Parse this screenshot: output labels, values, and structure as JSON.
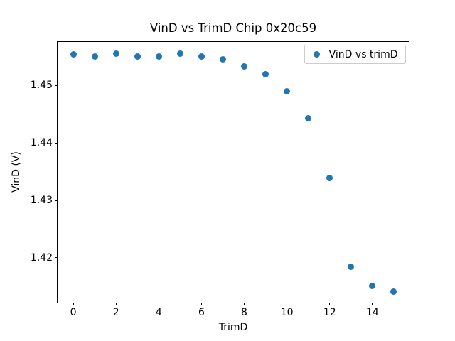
{
  "figure": {
    "background_color": "#ffffff",
    "axes_edge_color": "#000000",
    "text_color": "#000000",
    "legend_edge_color": "#cccccc"
  },
  "chart_data": {
    "type": "scatter",
    "title": "VinD vs TrimD Chip 0x20c59",
    "xlabel": "TrimD",
    "ylabel": "VinD (V)",
    "legend": [
      "VinD vs trimD"
    ],
    "legend_position": "upper right",
    "marker_color": "#1f77b4",
    "grid": false,
    "x": [
      0,
      1,
      2,
      3,
      4,
      5,
      6,
      7,
      8,
      9,
      10,
      11,
      12,
      13,
      14,
      15
    ],
    "y": [
      1.4554,
      1.455,
      1.4556,
      1.455,
      1.4551,
      1.4555,
      1.455,
      1.4545,
      1.4533,
      1.452,
      1.449,
      1.4443,
      1.4339,
      1.4184,
      1.4151,
      1.4141
    ],
    "xlim": [
      -0.75,
      15.75
    ],
    "ylim": [
      1.412,
      1.4577
    ],
    "xticks": [
      0,
      2,
      4,
      6,
      8,
      10,
      12,
      14
    ],
    "xtick_labels": [
      "0",
      "2",
      "4",
      "6",
      "8",
      "10",
      "12",
      "14"
    ],
    "yticks": [
      1.42,
      1.43,
      1.44,
      1.45
    ],
    "ytick_labels": [
      "1.42",
      "1.43",
      "1.44",
      "1.45"
    ]
  }
}
